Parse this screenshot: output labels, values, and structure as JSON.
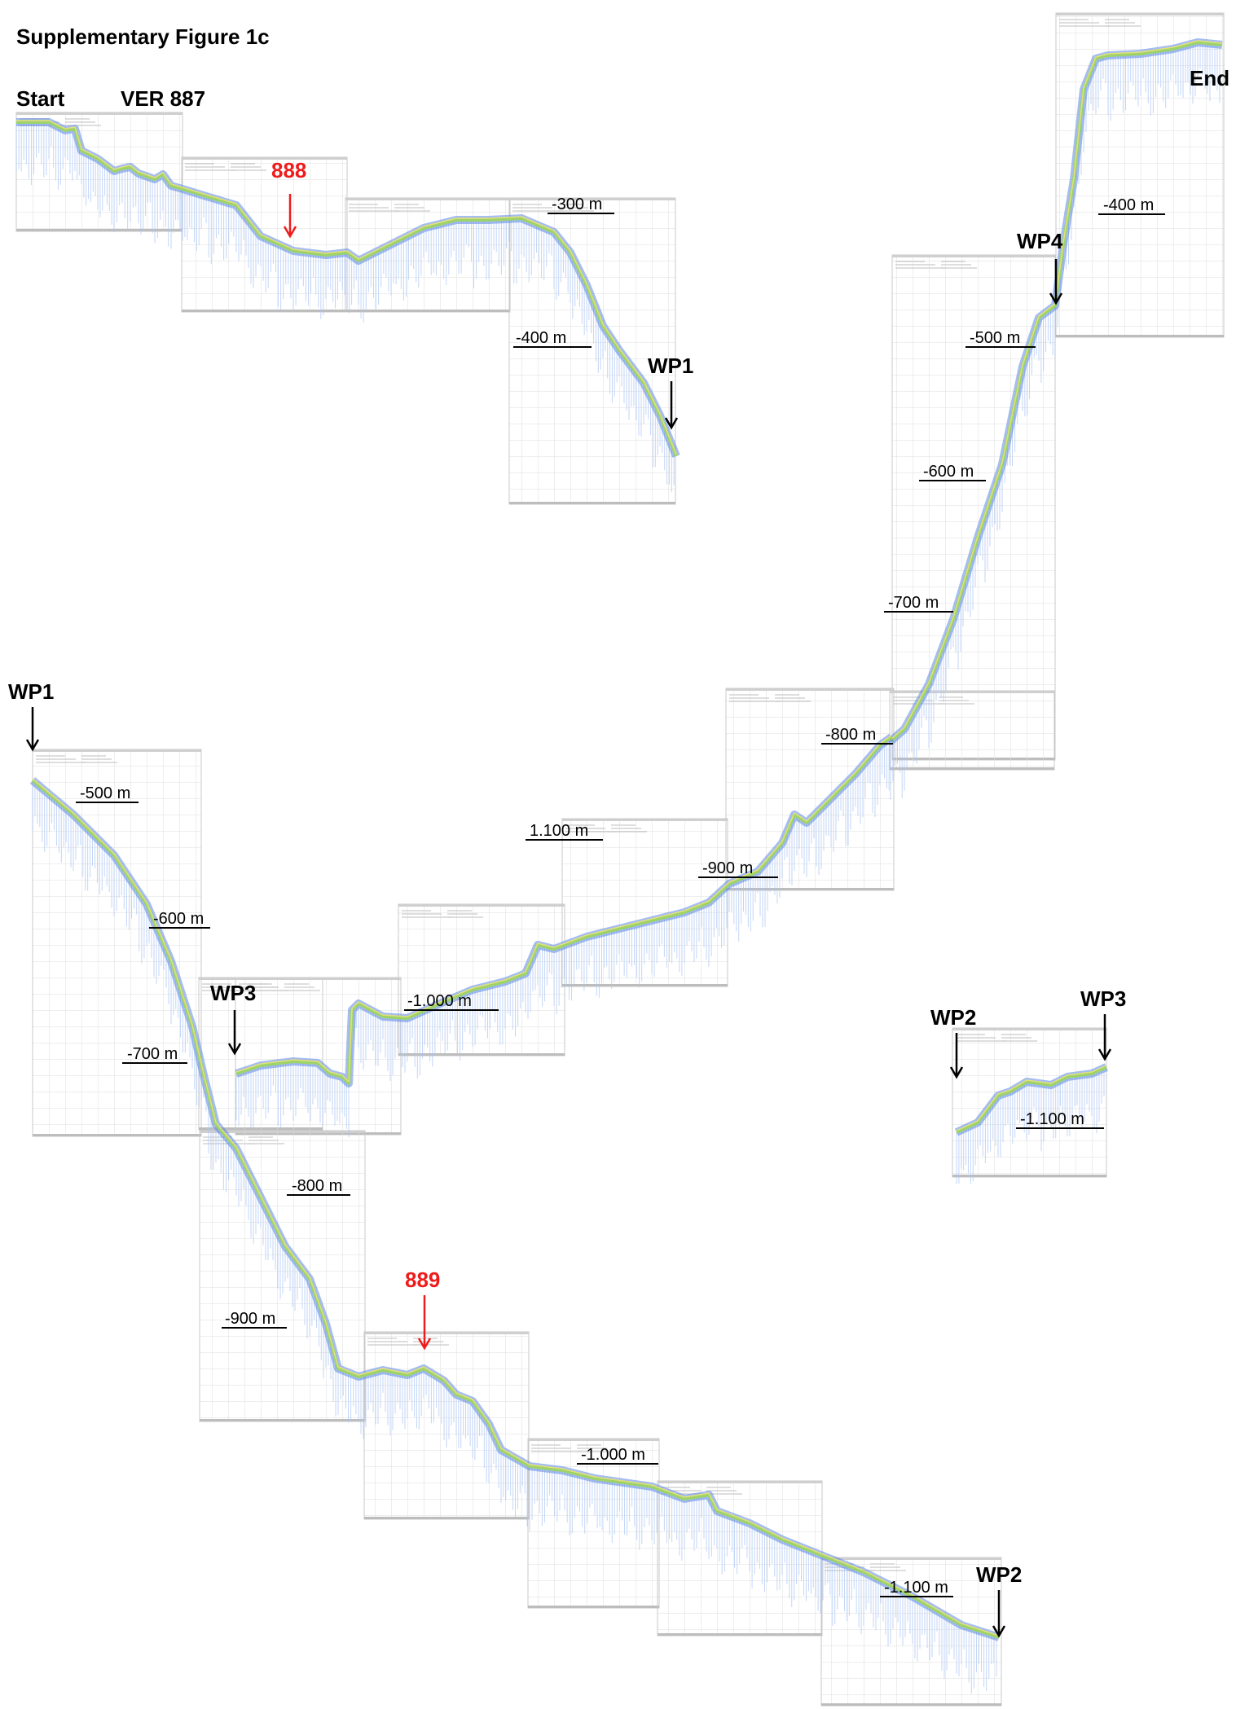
{
  "figure": {
    "title": "Supplementary Figure 1c",
    "start_label": "Start",
    "end_label": "End",
    "dive_label": "VER 887",
    "stations": {
      "s888": "888",
      "s889": "889"
    },
    "waypoints": {
      "wp1": "WP1",
      "wp2": "WP2",
      "wp3": "WP3",
      "wp4": "WP4"
    },
    "depths": {
      "d300": "-300 m",
      "d400": "-400 m",
      "d500": "-500 m",
      "d600": "-600 m",
      "d700": "-700 m",
      "d800": "-800 m",
      "d900": "-900 m",
      "d1000": "-1.000 m",
      "d1100": "-1.100 m",
      "d1100b": "1.100 m"
    }
  },
  "colors": {
    "profile": "#5b86e6",
    "profile_light": "#aac4f4",
    "seafloor_green": "#9ed36a",
    "seafloor_yellow": "#e2e07a",
    "grid": "#d7d7d7",
    "station_red": "#ee1c1c"
  }
}
